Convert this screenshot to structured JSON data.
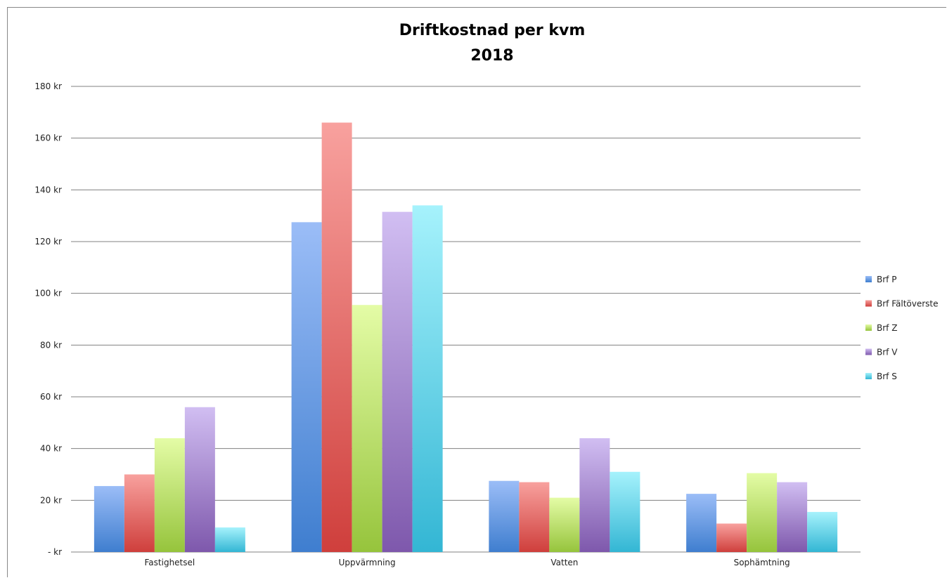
{
  "chart_data": {
    "type": "bar",
    "title": "Driftkostnad per kvm",
    "subtitle": "2018",
    "xlabel": "",
    "ylabel": "",
    "ylim": [
      0,
      180
    ],
    "yticks": [
      0,
      20,
      40,
      60,
      80,
      100,
      120,
      140,
      160,
      180
    ],
    "ytick_labels": [
      "-  kr",
      "20 kr",
      "40 kr",
      "60 kr",
      "80 kr",
      "100 kr",
      "120 kr",
      "140 kr",
      "160 kr",
      "180 kr"
    ],
    "grid": true,
    "legend_position": "right",
    "categories": [
      "Fastighetsel",
      "Uppvärmning",
      "Vatten",
      "Sophämtning"
    ],
    "series": [
      {
        "name": "Brf P",
        "values": [
          25.5,
          127.5,
          27.5,
          22.5
        ],
        "color_top": "#9bbdf7",
        "color_bottom": "#3f7ecf"
      },
      {
        "name": "Brf Fältöverste",
        "values": [
          30,
          166,
          27,
          11
        ],
        "color_top": "#f8a19e",
        "color_bottom": "#cf3f3c"
      },
      {
        "name": "Brf Z",
        "values": [
          44,
          95.5,
          21,
          30.5
        ],
        "color_top": "#e4fca6",
        "color_bottom": "#96c43c"
      },
      {
        "name": "Brf V",
        "values": [
          56,
          131.5,
          44,
          27
        ],
        "color_top": "#d1bef2",
        "color_bottom": "#7e58ac"
      },
      {
        "name": "Brf S",
        "values": [
          9.5,
          134,
          31,
          15.5
        ],
        "color_top": "#a6f2fc",
        "color_bottom": "#33b6d4"
      }
    ]
  }
}
